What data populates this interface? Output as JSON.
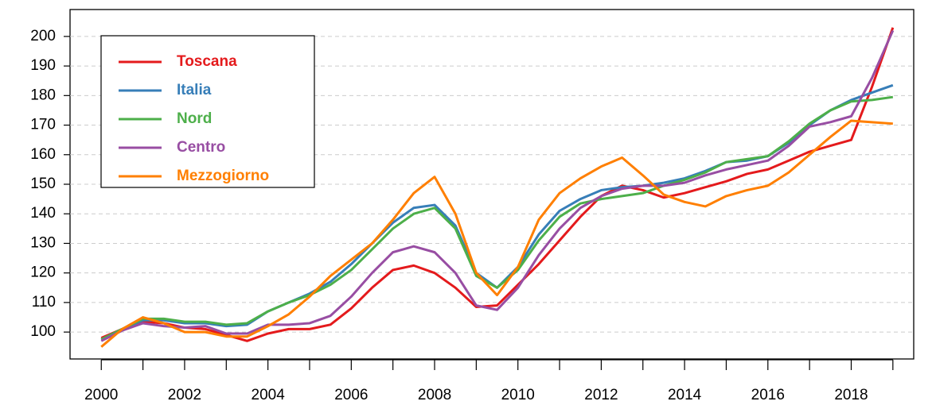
{
  "chart_data": {
    "type": "line",
    "x": [
      2000,
      2000.5,
      2001,
      2001.5,
      2002,
      2002.5,
      2003,
      2003.5,
      2004,
      2004.5,
      2005,
      2005.5,
      2006,
      2006.5,
      2007,
      2007.5,
      2008,
      2008.5,
      2009,
      2009.5,
      2010,
      2010.5,
      2011,
      2011.5,
      2012,
      2012.5,
      2013,
      2013.5,
      2014,
      2014.5,
      2015,
      2015.5,
      2016,
      2016.5,
      2017,
      2017.5,
      2018,
      2018.5,
      2019
    ],
    "series": [
      {
        "name": "Toscana",
        "color": "#e41a1c",
        "values": [
          98,
          101,
          103.5,
          103,
          101.5,
          101,
          99,
          97,
          99.5,
          101,
          101,
          102.5,
          108,
          115,
          121,
          122.5,
          120,
          115,
          108.5,
          109,
          116,
          123,
          131,
          139,
          146,
          149.5,
          148,
          145.5,
          147,
          149,
          151,
          153.5,
          155,
          158,
          161,
          163,
          165,
          183,
          203
        ]
      },
      {
        "name": "Italia",
        "color": "#377eb8",
        "values": [
          97.5,
          101,
          104,
          104,
          103,
          103,
          102,
          102.5,
          107,
          110,
          113,
          117,
          123,
          130,
          137,
          142,
          143,
          136,
          120,
          115,
          122,
          133,
          141,
          145,
          148,
          149,
          149.5,
          150.5,
          152,
          154.5,
          157.5,
          158,
          159.5,
          164,
          170,
          175,
          178.5,
          181,
          183.5
        ]
      },
      {
        "name": "Nord",
        "color": "#4daf4a",
        "values": [
          97.5,
          101,
          104.5,
          104.5,
          103.5,
          103.5,
          102.5,
          103,
          107,
          110,
          112.5,
          116,
          121,
          128,
          135,
          140,
          142,
          135,
          119,
          115,
          121,
          131,
          139,
          143.5,
          145,
          146,
          147,
          149.5,
          151.5,
          154,
          157.5,
          158.5,
          159.5,
          164.5,
          170.5,
          175,
          178,
          178.5,
          179.5
        ]
      },
      {
        "name": "Centro",
        "color": "#984ea3",
        "values": [
          97,
          100.5,
          103,
          102,
          101.5,
          102,
          99.5,
          99.5,
          102.5,
          102.5,
          103,
          105.5,
          112,
          120,
          127,
          129,
          127,
          120,
          109,
          107.5,
          115,
          126,
          135,
          142,
          146,
          148.5,
          149.5,
          149.5,
          150.5,
          153,
          155,
          156.5,
          158,
          163,
          169.5,
          171,
          173,
          186,
          202
        ]
      },
      {
        "name": "Mezzogiorno",
        "color": "#ff7f00",
        "values": [
          95,
          101,
          105,
          103,
          100,
          100,
          98.5,
          98.5,
          102,
          106,
          112,
          119,
          124.5,
          130,
          138,
          147,
          152.5,
          140,
          120,
          112.5,
          122,
          138,
          147,
          152,
          156,
          159,
          153,
          146.5,
          144,
          142.5,
          146,
          148,
          149.5,
          154,
          160,
          166,
          171.5,
          171,
          170.5
        ]
      }
    ],
    "xlim": [
      1999.25,
      2019.5
    ],
    "ylim": [
      90.9,
      209.1
    ],
    "xticks": [
      2000,
      2002,
      2004,
      2006,
      2008,
      2010,
      2012,
      2014,
      2016,
      2018
    ],
    "xminor_ticks": [
      2000,
      2001,
      2002,
      2003,
      2004,
      2005,
      2006,
      2007,
      2008,
      2009,
      2010,
      2011,
      2012,
      2013,
      2014,
      2015,
      2016,
      2017,
      2018,
      2019
    ],
    "yticks": [
      100,
      110,
      120,
      130,
      140,
      150,
      160,
      170,
      180,
      190,
      200
    ],
    "grid": true,
    "legend": "top-left"
  }
}
